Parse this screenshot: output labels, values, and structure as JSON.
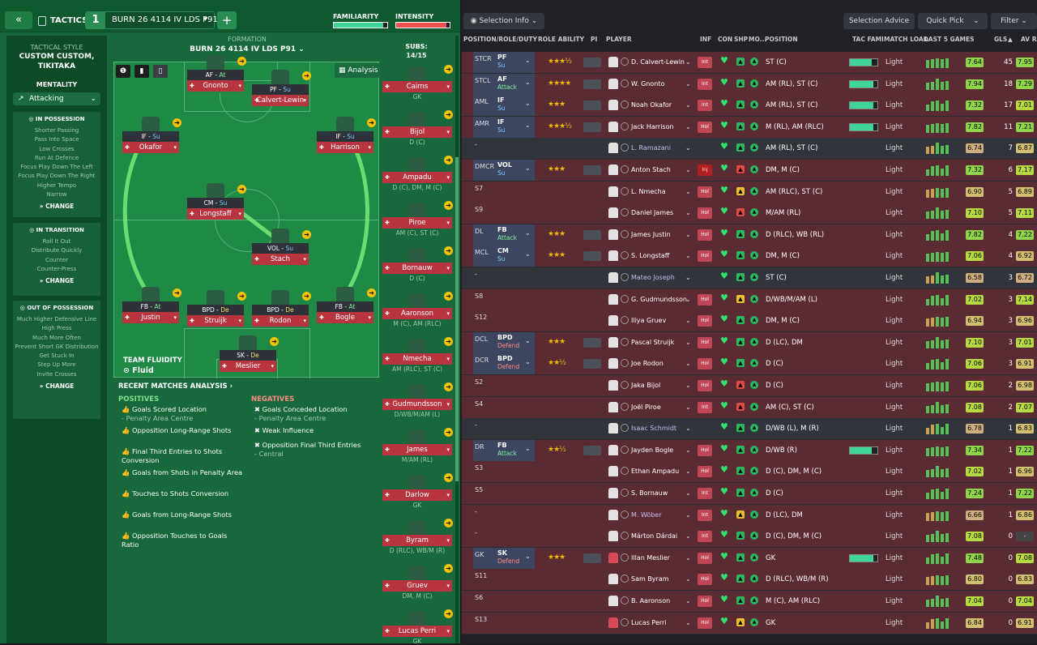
{
  "header": {
    "back_icon": "double-chevron-left-icon",
    "tactics_label": "TACTICS",
    "tactic_number": "1",
    "tactic_name": "BURN 26 4114 IV LDS P91",
    "add_label": "+",
    "familiarity_label": "FAMILIARITY",
    "familiarity_value": 0.92,
    "intensity_label": "INTENSITY",
    "intensity_value": 0.94
  },
  "sidebar": {
    "style_label": "TACTICAL STYLE",
    "style_value": "CUSTOM CUSTOM, TIKITAKA",
    "mentality_label": "MENTALITY",
    "mentality_value": "Attacking",
    "sections": [
      {
        "title": "IN POSSESSION",
        "items": [
          "Shorter Passing",
          "Pass Into Space",
          "Low Crosses",
          "Run At Defence",
          "Focus Play Down The Left",
          "Focus Play Down The Right",
          "Higher Tempo",
          "Narrow"
        ],
        "change": "CHANGE"
      },
      {
        "title": "IN TRANSITION",
        "items": [
          "Roll It Out",
          "Distribute Quickly",
          "Counter",
          "Counter-Press"
        ],
        "change": "CHANGE"
      },
      {
        "title": "OUT OF POSSESSION",
        "items": [
          "Much Higher Defensive Line",
          "High Press",
          "Much More Often",
          "Prevent Short GK Distribution",
          "Get Stuck In",
          "Step Up More",
          "Invite Crosses"
        ],
        "change": "CHANGE"
      }
    ]
  },
  "formation": {
    "label": "FORMATION",
    "name": "BURN 26 4114 IV LDS P91",
    "analysis_label": "Analysis",
    "fluidity_label": "TEAM FLUIDITY",
    "fluidity_value": "Fluid",
    "players": [
      {
        "role": "AF",
        "duty": "At",
        "name": "Gnonto"
      },
      {
        "role": "PF",
        "duty": "Su",
        "name": "Calvert-Lewin"
      },
      {
        "role": "IF",
        "duty": "Su",
        "name": "Okafor"
      },
      {
        "role": "IF",
        "duty": "Su",
        "name": "Harrison"
      },
      {
        "role": "CM",
        "duty": "Su",
        "name": "Longstaff"
      },
      {
        "role": "VOL",
        "duty": "Su",
        "name": "Stach"
      },
      {
        "role": "FB",
        "duty": "At",
        "name": "Justin"
      },
      {
        "role": "BPD",
        "duty": "De",
        "name": "Struijk"
      },
      {
        "role": "BPD",
        "duty": "De",
        "name": "Rodon"
      },
      {
        "role": "FB",
        "duty": "At",
        "name": "Bogle"
      },
      {
        "role": "SK",
        "duty": "De",
        "name": "Meslier"
      }
    ]
  },
  "analysis": {
    "title": "RECENT MATCHES ANALYSIS ›",
    "positives_label": "POSITIVES",
    "negatives_label": "NEGATIVES",
    "positives": [
      {
        "t": "Goals Scored Location",
        "s": "- Penalty Area Centre"
      },
      {
        "t": "Opposition Long-Range Shots",
        "s": ""
      },
      {
        "t": "Final Third Entries to Shots Conversion",
        "s": ""
      },
      {
        "t": "Goals from Shots in Penalty Area",
        "s": ""
      },
      {
        "t": "Touches to Shots Conversion",
        "s": ""
      },
      {
        "t": "Goals from Long-Range Shots",
        "s": ""
      },
      {
        "t": "Opposition Touches to Goals Ratio",
        "s": ""
      }
    ],
    "negatives": [
      {
        "t": "Goals Conceded Location",
        "s": "- Penalty Area Centre"
      },
      {
        "t": "Weak Influence",
        "s": ""
      },
      {
        "t": "Opposition Final Third Entries",
        "s": "- Central"
      }
    ]
  },
  "subs": {
    "label": "SUBS:",
    "count": "14/15",
    "players": [
      {
        "name": "Cairns",
        "pos": "GK"
      },
      {
        "name": "Bijol",
        "pos": "D (C)"
      },
      {
        "name": "Ampadu",
        "pos": "D (C), DM, M (C)"
      },
      {
        "name": "Piroe",
        "pos": "AM (C), ST (C)"
      },
      {
        "name": "Bornauw",
        "pos": "D (C)"
      },
      {
        "name": "Aaronson",
        "pos": "M (C), AM (RLC)"
      },
      {
        "name": "Nmecha",
        "pos": "AM (RLC), ST (C)"
      },
      {
        "name": "Gudmundsson",
        "pos": "D/WB/M/AM (L)"
      },
      {
        "name": "James",
        "pos": "M/AM (RL)"
      },
      {
        "name": "Darlow",
        "pos": "GK"
      },
      {
        "name": "Byram",
        "pos": "D (RLC), WB/M (R)"
      },
      {
        "name": "Gruev",
        "pos": "DM, M (C)"
      },
      {
        "name": "Lucas Perri",
        "pos": "GK"
      }
    ]
  },
  "toolbar": {
    "selection_info": "Selection Info",
    "selection_advice": "Selection Advice",
    "quick_pick": "Quick Pick",
    "filter": "Filter"
  },
  "columns": [
    "POSITION/ROLE/DUTY",
    "ROLE ABILITY",
    "PI",
    "PLAYER",
    "INF",
    "CON",
    "SHP",
    "MO...",
    "POSITION",
    "TAC FAMI",
    "MATCH LOAD",
    "LAST 5 GAMES",
    "GLS",
    "▲",
    "AV RAT"
  ],
  "colors": {
    "accent": "#2a8c55",
    "row_red": "#5b2b33",
    "rating_green": "#8fd44a"
  },
  "rows": [
    {
      "pos": "STCR",
      "role": "PF",
      "duty": "Su",
      "dt": "su",
      "stars": "★★★½",
      "name": "D. Calvert-Lewin",
      "inf": "Int",
      "shp": "g",
      "posn": "ST (C)",
      "fam": 0.8,
      "ml": "Light",
      "last": "7.64",
      "gls": "45",
      "av": "7.95",
      "bg": "red"
    },
    {
      "pos": "STCL",
      "role": "AF",
      "duty": "Attack",
      "dt": "att",
      "stars": "★★★★",
      "name": "W. Gnonto",
      "inf": "Int",
      "shp": "g",
      "posn": "AM (RL), ST (C)",
      "fam": 0.85,
      "ml": "Light",
      "last": "7.94",
      "gls": "18",
      "av": "7.29",
      "bg": "red"
    },
    {
      "pos": "AML",
      "role": "IF",
      "duty": "Su",
      "dt": "su",
      "stars": "★★★",
      "name": "Noah Okafor",
      "inf": "Int",
      "shp": "g",
      "posn": "AM (RL), ST (C)",
      "fam": 0.85,
      "ml": "Light",
      "last": "7.32",
      "gls": "17",
      "av": "7.01",
      "bg": "red"
    },
    {
      "pos": "AMR",
      "role": "IF",
      "duty": "Su",
      "dt": "su",
      "stars": "★★★½",
      "name": "Jack Harrison",
      "inf": "Hol",
      "shp": "g",
      "posn": "M (RL), AM (RLC)",
      "fam": 0.85,
      "ml": "Light",
      "last": "7.82",
      "gls": "11",
      "av": "7.21",
      "bg": "red"
    },
    {
      "pos": "-",
      "role": "",
      "duty": "",
      "dt": "",
      "stars": "",
      "name": "L. Ramazani",
      "inf": "",
      "shp": "g",
      "posn": "AM (RL), ST (C)",
      "fam": 0,
      "ml": "Light",
      "last": "6.74",
      "gls": "7",
      "av": "6.87",
      "bg": "grey",
      "alt": true
    },
    {
      "pos": "DMCR",
      "role": "VOL",
      "duty": "Su",
      "dt": "su",
      "stars": "★★★",
      "name": "Anton Stach",
      "inf": "Inj",
      "shp": "r",
      "posn": "DM, M (C)",
      "fam": 0,
      "ml": "Light",
      "last": "7.32",
      "gls": "6",
      "av": "7.17",
      "bg": "red"
    },
    {
      "pos": "S7",
      "role": "",
      "duty": "",
      "dt": "",
      "stars": "",
      "name": "L. Nmecha",
      "inf": "Hol",
      "shp": "y",
      "posn": "AM (RLC), ST (C)",
      "fam": 0,
      "ml": "Light",
      "last": "6.90",
      "gls": "5",
      "av": "6.89",
      "bg": "red"
    },
    {
      "pos": "S9",
      "role": "",
      "duty": "",
      "dt": "",
      "stars": "",
      "name": "Daniel James",
      "inf": "Hol",
      "shp": "r",
      "posn": "M/AM (RL)",
      "fam": 0,
      "ml": "Light",
      "last": "7.10",
      "gls": "5",
      "av": "7.11",
      "bg": "red"
    },
    {
      "pos": "DL",
      "role": "FB",
      "duty": "Attack",
      "dt": "att",
      "stars": "★★★",
      "name": "James Justin",
      "inf": "Hol",
      "shp": "g",
      "posn": "D (RLC), WB (RL)",
      "fam": 0,
      "ml": "Light",
      "last": "7.82",
      "gls": "4",
      "av": "7.22",
      "bg": "red"
    },
    {
      "pos": "MCL",
      "role": "CM",
      "duty": "Su",
      "dt": "su",
      "stars": "★★★",
      "name": "S. Longstaff",
      "inf": "Hol",
      "shp": "g",
      "posn": "DM, M (C)",
      "fam": 0,
      "ml": "Light",
      "last": "7.06",
      "gls": "4",
      "av": "6.92",
      "bg": "red"
    },
    {
      "pos": "-",
      "role": "",
      "duty": "",
      "dt": "",
      "stars": "",
      "name": "Mateo Joseph",
      "inf": "",
      "shp": "g",
      "posn": "ST (C)",
      "fam": 0,
      "ml": "Light",
      "last": "6.58",
      "gls": "3",
      "av": "6.72",
      "bg": "grey",
      "alt": true
    },
    {
      "pos": "S8",
      "role": "",
      "duty": "",
      "dt": "",
      "stars": "",
      "name": "G. Gudmundsson",
      "inf": "Hol",
      "shp": "y",
      "posn": "D/WB/M/AM (L)",
      "fam": 0,
      "ml": "Light",
      "last": "7.02",
      "gls": "3",
      "av": "7.14",
      "bg": "red"
    },
    {
      "pos": "S12",
      "role": "",
      "duty": "",
      "dt": "",
      "stars": "",
      "name": "Iliya Gruev",
      "inf": "Hol",
      "shp": "g",
      "posn": "DM, M (C)",
      "fam": 0,
      "ml": "Light",
      "last": "6.94",
      "gls": "3",
      "av": "6.96",
      "bg": "red"
    },
    {
      "pos": "DCL",
      "role": "BPD",
      "duty": "Defend",
      "dt": "def",
      "stars": "★★★",
      "name": "Pascal Struijk",
      "inf": "Hol",
      "shp": "g",
      "posn": "D (LC), DM",
      "fam": 0,
      "ml": "Light",
      "last": "7.10",
      "gls": "3",
      "av": "7.01",
      "bg": "red"
    },
    {
      "pos": "DCR",
      "role": "BPD",
      "duty": "Defend",
      "dt": "def",
      "stars": "★★½",
      "name": "Joe Rodon",
      "inf": "Hol",
      "shp": "g",
      "posn": "D (C)",
      "fam": 0,
      "ml": "Light",
      "last": "7.06",
      "gls": "3",
      "av": "6.91",
      "bg": "red"
    },
    {
      "pos": "S2",
      "role": "",
      "duty": "",
      "dt": "",
      "stars": "",
      "name": "Jaka Bijol",
      "inf": "Hol",
      "shp": "r",
      "posn": "D (C)",
      "fam": 0,
      "ml": "Light",
      "last": "7.06",
      "gls": "2",
      "av": "6.98",
      "bg": "red"
    },
    {
      "pos": "S4",
      "role": "",
      "duty": "",
      "dt": "",
      "stars": "",
      "name": "Joël Piroe",
      "inf": "Int",
      "shp": "r",
      "posn": "AM (C), ST (C)",
      "fam": 0,
      "ml": "Light",
      "last": "7.08",
      "gls": "2",
      "av": "7.07",
      "bg": "red"
    },
    {
      "pos": "-",
      "role": "",
      "duty": "",
      "dt": "",
      "stars": "",
      "name": "Isaac Schmidt",
      "inf": "",
      "shp": "g",
      "posn": "D/WB (L), M (R)",
      "fam": 0,
      "ml": "Light",
      "last": "6.78",
      "gls": "1",
      "av": "6.83",
      "bg": "grey",
      "alt": true
    },
    {
      "pos": "DR",
      "role": "FB",
      "duty": "Attack",
      "dt": "att",
      "stars": "★★½",
      "name": "Jayden Bogle",
      "inf": "Hol",
      "shp": "g",
      "posn": "D/WB (R)",
      "fam": 0.8,
      "ml": "Light",
      "last": "7.34",
      "gls": "1",
      "av": "7.22",
      "bg": "red"
    },
    {
      "pos": "S3",
      "role": "",
      "duty": "",
      "dt": "",
      "stars": "",
      "name": "Ethan Ampadu",
      "inf": "Hol",
      "shp": "g",
      "posn": "D (C), DM, M (C)",
      "fam": 0,
      "ml": "Light",
      "last": "7.02",
      "gls": "1",
      "av": "6.96",
      "bg": "red"
    },
    {
      "pos": "S5",
      "role": "",
      "duty": "",
      "dt": "",
      "stars": "",
      "name": "S. Bornauw",
      "inf": "Int",
      "shp": "g",
      "posn": "D (C)",
      "fam": 0,
      "ml": "Light",
      "last": "7.24",
      "gls": "1",
      "av": "7.22",
      "bg": "red"
    },
    {
      "pos": "-",
      "role": "",
      "duty": "",
      "dt": "",
      "stars": "",
      "name": "M. Wöber",
      "inf": "Int",
      "shp": "y",
      "posn": "D (LC), DM",
      "fam": 0,
      "ml": "Light",
      "last": "6.66",
      "gls": "1",
      "av": "6.86",
      "bg": "red",
      "alt": true
    },
    {
      "pos": "-",
      "role": "",
      "duty": "",
      "dt": "",
      "stars": "",
      "name": "Márton Dárdai",
      "inf": "Int",
      "shp": "g",
      "posn": "D (C), DM, M (C)",
      "fam": 0,
      "ml": "Light",
      "last": "7.08",
      "gls": "0",
      "av": "-",
      "bg": "red"
    },
    {
      "pos": "GK",
      "role": "SK",
      "duty": "Defend",
      "dt": "def",
      "stars": "★★★",
      "name": "Illan Meslier",
      "inf": "Hol",
      "shp": "g",
      "posn": "GK",
      "fam": 0.85,
      "ml": "Light",
      "last": "7.48",
      "gls": "0",
      "av": "7.08",
      "bg": "red",
      "gk": true
    },
    {
      "pos": "S11",
      "role": "",
      "duty": "",
      "dt": "",
      "stars": "",
      "name": "Sam Byram",
      "inf": "Hol",
      "shp": "g",
      "posn": "D (RLC), WB/M (R)",
      "fam": 0,
      "ml": "Light",
      "last": "6.80",
      "gls": "0",
      "av": "6.83",
      "bg": "red"
    },
    {
      "pos": "S6",
      "role": "",
      "duty": "",
      "dt": "",
      "stars": "",
      "name": "B. Aaronson",
      "inf": "Hol",
      "shp": "g",
      "posn": "M (C), AM (RLC)",
      "fam": 0,
      "ml": "Light",
      "last": "7.04",
      "gls": "0",
      "av": "7.04",
      "bg": "red"
    },
    {
      "pos": "S13",
      "role": "",
      "duty": "",
      "dt": "",
      "stars": "",
      "name": "Lucas Perri",
      "inf": "Hol",
      "shp": "y",
      "posn": "GK",
      "fam": 0,
      "ml": "Light",
      "last": "6.84",
      "gls": "0",
      "av": "6.91",
      "bg": "red",
      "gk": true
    }
  ]
}
